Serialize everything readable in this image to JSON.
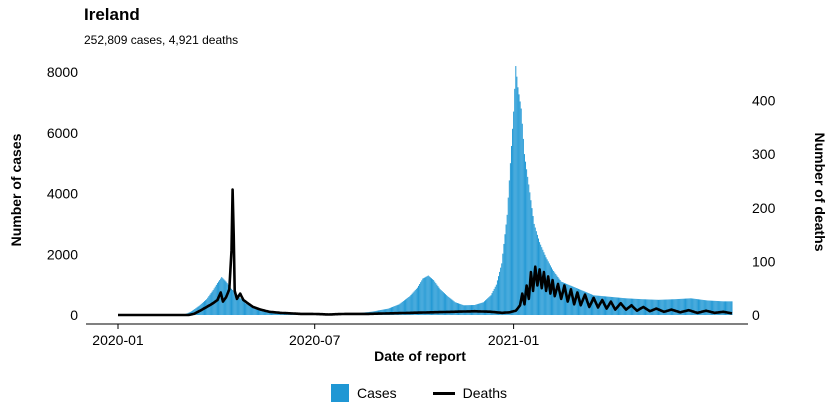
{
  "chart_data": {
    "type": "bar",
    "title": "Ireland",
    "subtitle": "252,809 cases, 4,921 deaths",
    "xlabel": "Date of report",
    "ylabel_left": "Number of cases",
    "ylabel_right": "Number of deaths",
    "ylim_left": [
      0,
      8300
    ],
    "ylim_right": [
      0,
      470
    ],
    "left_ticks": [
      0,
      2000,
      4000,
      6000,
      8000
    ],
    "right_ticks": [
      0,
      100,
      200,
      300,
      400
    ],
    "x_ticks": [
      "2020-01",
      "2020-07",
      "2021-01"
    ],
    "x_tick_days": [
      0,
      182,
      366
    ],
    "x_range_days": [
      0,
      568
    ],
    "grid": false,
    "legend_position": "bottom",
    "series": [
      {
        "name": "Cases",
        "kind": "bar",
        "color": "#1f97d4",
        "points": [
          [
            0,
            0
          ],
          [
            40,
            0
          ],
          [
            55,
            3
          ],
          [
            62,
            25
          ],
          [
            68,
            120
          ],
          [
            75,
            300
          ],
          [
            82,
            520
          ],
          [
            88,
            820
          ],
          [
            92,
            1050
          ],
          [
            96,
            1250
          ],
          [
            100,
            1100
          ],
          [
            104,
            900
          ],
          [
            108,
            750
          ],
          [
            112,
            600
          ],
          [
            118,
            380
          ],
          [
            125,
            250
          ],
          [
            132,
            170
          ],
          [
            140,
            110
          ],
          [
            150,
            70
          ],
          [
            165,
            35
          ],
          [
            180,
            15
          ],
          [
            195,
            10
          ],
          [
            210,
            30
          ],
          [
            222,
            60
          ],
          [
            235,
            110
          ],
          [
            250,
            210
          ],
          [
            260,
            350
          ],
          [
            270,
            620
          ],
          [
            277,
            900
          ],
          [
            282,
            1200
          ],
          [
            287,
            1300
          ],
          [
            292,
            1150
          ],
          [
            298,
            850
          ],
          [
            305,
            620
          ],
          [
            312,
            420
          ],
          [
            320,
            320
          ],
          [
            330,
            330
          ],
          [
            338,
            420
          ],
          [
            345,
            650
          ],
          [
            350,
            1000
          ],
          [
            355,
            1700
          ],
          [
            360,
            3300
          ],
          [
            363,
            5000
          ],
          [
            366,
            6700
          ],
          [
            368,
            8200
          ],
          [
            370,
            7500
          ],
          [
            373,
            6800
          ],
          [
            376,
            5300
          ],
          [
            380,
            4300
          ],
          [
            385,
            3000
          ],
          [
            390,
            2400
          ],
          [
            396,
            1900
          ],
          [
            402,
            1500
          ],
          [
            410,
            1100
          ],
          [
            420,
            950
          ],
          [
            430,
            800
          ],
          [
            440,
            650
          ],
          [
            455,
            600
          ],
          [
            470,
            550
          ],
          [
            485,
            520
          ],
          [
            500,
            500
          ],
          [
            515,
            520
          ],
          [
            530,
            550
          ],
          [
            545,
            480
          ],
          [
            560,
            450
          ],
          [
            568,
            450
          ]
        ]
      },
      {
        "name": "Deaths",
        "kind": "line",
        "color": "#000000",
        "points": [
          [
            0,
            0
          ],
          [
            65,
            0
          ],
          [
            70,
            2
          ],
          [
            76,
            8
          ],
          [
            82,
            15
          ],
          [
            88,
            22
          ],
          [
            92,
            28
          ],
          [
            95,
            42
          ],
          [
            97,
            25
          ],
          [
            100,
            33
          ],
          [
            103,
            48
          ],
          [
            105,
            120
          ],
          [
            106,
            234
          ],
          [
            107,
            150
          ],
          [
            108,
            45
          ],
          [
            110,
            30
          ],
          [
            113,
            40
          ],
          [
            116,
            28
          ],
          [
            120,
            22
          ],
          [
            125,
            15
          ],
          [
            132,
            10
          ],
          [
            140,
            6
          ],
          [
            150,
            4
          ],
          [
            160,
            3
          ],
          [
            170,
            2
          ],
          [
            180,
            2
          ],
          [
            195,
            1
          ],
          [
            210,
            2
          ],
          [
            230,
            2
          ],
          [
            250,
            3
          ],
          [
            270,
            4
          ],
          [
            290,
            5
          ],
          [
            310,
            6
          ],
          [
            330,
            7
          ],
          [
            345,
            6
          ],
          [
            355,
            4
          ],
          [
            362,
            5
          ],
          [
            368,
            8
          ],
          [
            372,
            18
          ],
          [
            374,
            40
          ],
          [
            376,
            20
          ],
          [
            378,
            55
          ],
          [
            380,
            30
          ],
          [
            382,
            80
          ],
          [
            384,
            45
          ],
          [
            386,
            90
          ],
          [
            388,
            55
          ],
          [
            390,
            85
          ],
          [
            392,
            50
          ],
          [
            394,
            80
          ],
          [
            396,
            45
          ],
          [
            398,
            72
          ],
          [
            400,
            40
          ],
          [
            402,
            65
          ],
          [
            404,
            35
          ],
          [
            407,
            58
          ],
          [
            410,
            30
          ],
          [
            413,
            55
          ],
          [
            416,
            25
          ],
          [
            419,
            48
          ],
          [
            422,
            20
          ],
          [
            425,
            42
          ],
          [
            428,
            18
          ],
          [
            432,
            38
          ],
          [
            436,
            15
          ],
          [
            440,
            32
          ],
          [
            444,
            14
          ],
          [
            448,
            28
          ],
          [
            452,
            12
          ],
          [
            456,
            25
          ],
          [
            460,
            10
          ],
          [
            465,
            22
          ],
          [
            470,
            10
          ],
          [
            475,
            18
          ],
          [
            480,
            8
          ],
          [
            486,
            15
          ],
          [
            492,
            7
          ],
          [
            498,
            12
          ],
          [
            505,
            6
          ],
          [
            512,
            10
          ],
          [
            520,
            5
          ],
          [
            528,
            9
          ],
          [
            536,
            4
          ],
          [
            544,
            8
          ],
          [
            552,
            4
          ],
          [
            560,
            6
          ],
          [
            568,
            3
          ]
        ]
      }
    ]
  }
}
